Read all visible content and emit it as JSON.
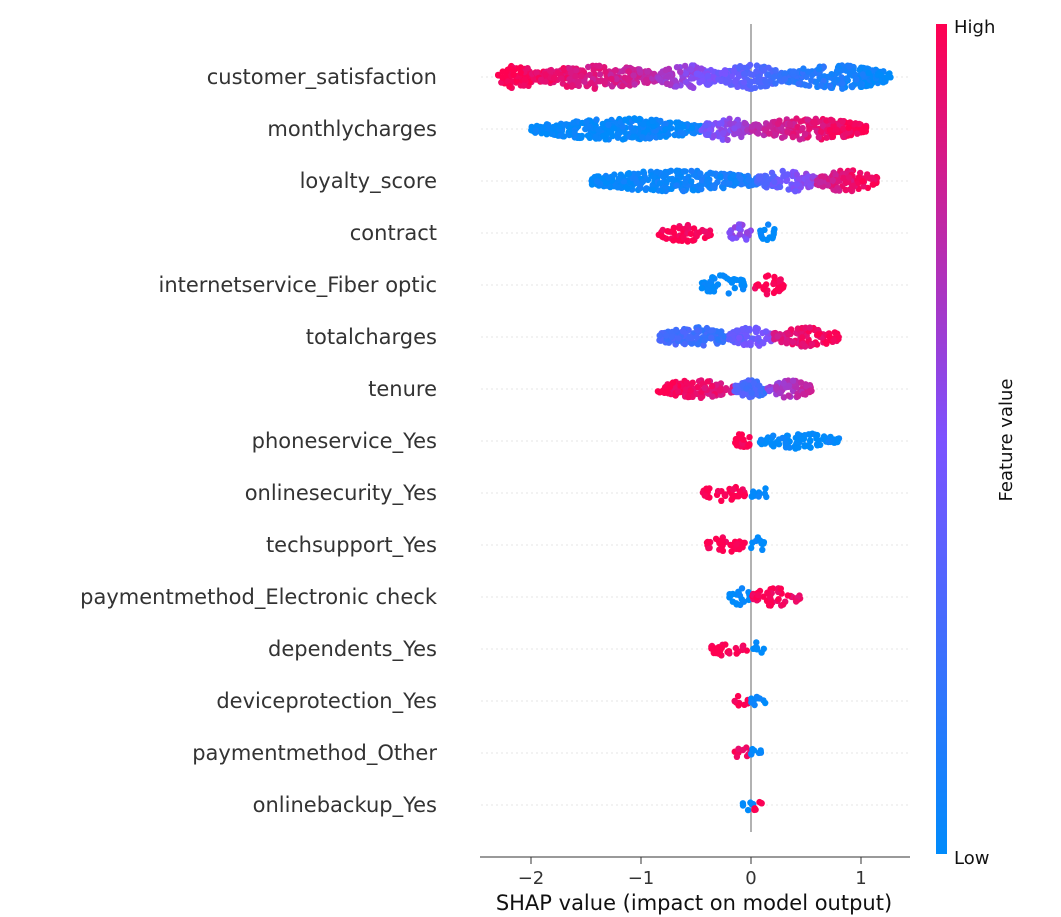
{
  "chart_data": {
    "type": "scatter",
    "subtype": "shap-beeswarm",
    "xlabel": "SHAP value (impact on model output)",
    "xlim": [
      -2.45,
      1.45
    ],
    "xticks": [
      {
        "value": -2,
        "label": "−2"
      },
      {
        "value": -1,
        "label": "−1"
      },
      {
        "value": 0,
        "label": "0"
      },
      {
        "value": 1,
        "label": "1"
      }
    ],
    "features": [
      {
        "name": "customer_satisfaction",
        "density": 1.0,
        "spread": 12,
        "segments": [
          {
            "from": -2.3,
            "to": -1.95,
            "cfrom": 1.0,
            "cto": 0.95
          },
          {
            "from": -1.95,
            "to": -0.85,
            "cfrom": 0.95,
            "cto": 0.75
          },
          {
            "from": -0.85,
            "to": -0.3,
            "cfrom": 0.7,
            "cto": 0.45
          },
          {
            "from": -0.3,
            "to": 0.3,
            "cfrom": 0.45,
            "cto": 0.25
          },
          {
            "from": 0.3,
            "to": 1.27,
            "cfrom": 0.2,
            "cto": 0.0
          }
        ]
      },
      {
        "name": "monthlycharges",
        "density": 0.9,
        "spread": 11,
        "segments": [
          {
            "from": -2.0,
            "to": -0.45,
            "cfrom": 0.0,
            "cto": 0.05
          },
          {
            "from": -0.45,
            "to": 0.0,
            "cfrom": 0.45,
            "cto": 0.65
          },
          {
            "from": 0.0,
            "to": 1.05,
            "cfrom": 0.75,
            "cto": 1.0
          }
        ]
      },
      {
        "name": "loyalty_score",
        "density": 0.9,
        "spread": 11,
        "segments": [
          {
            "from": -1.45,
            "to": 0.05,
            "cfrom": 0.0,
            "cto": 0.1
          },
          {
            "from": 0.05,
            "to": 0.6,
            "cfrom": 0.3,
            "cto": 0.6
          },
          {
            "from": 0.6,
            "to": 1.15,
            "cfrom": 0.8,
            "cto": 1.0
          }
        ]
      },
      {
        "name": "contract",
        "density": 0.45,
        "spread": 9,
        "segments": [
          {
            "from": -0.85,
            "to": -0.35,
            "cfrom": 1.0,
            "cto": 0.95
          },
          {
            "from": -0.2,
            "to": 0.0,
            "cfrom": 0.55,
            "cto": 0.55
          },
          {
            "from": 0.08,
            "to": 0.22,
            "cfrom": 0.0,
            "cto": 0.0
          }
        ]
      },
      {
        "name": "internetservice_Fiber optic",
        "density": 0.5,
        "spread": 10,
        "segments": [
          {
            "from": -0.45,
            "to": -0.05,
            "cfrom": 0.0,
            "cto": 0.0
          },
          {
            "from": 0.03,
            "to": 0.3,
            "cfrom": 1.0,
            "cto": 1.0
          }
        ]
      },
      {
        "name": "totalcharges",
        "density": 0.85,
        "spread": 10,
        "segments": [
          {
            "from": -0.85,
            "to": -0.2,
            "cfrom": 0.3,
            "cto": 0.2
          },
          {
            "from": -0.2,
            "to": 0.2,
            "cfrom": 0.4,
            "cto": 0.5
          },
          {
            "from": 0.2,
            "to": 0.8,
            "cfrom": 0.85,
            "cto": 1.0
          }
        ]
      },
      {
        "name": "tenure",
        "density": 0.8,
        "spread": 9,
        "segments": [
          {
            "from": -0.85,
            "to": -0.15,
            "cfrom": 1.0,
            "cto": 0.85
          },
          {
            "from": -0.15,
            "to": 0.15,
            "cfrom": 0.35,
            "cto": 0.2
          },
          {
            "from": 0.15,
            "to": 0.55,
            "cfrom": 0.6,
            "cto": 0.8
          }
        ]
      },
      {
        "name": "phoneservice_Yes",
        "density": 0.5,
        "spread": 8,
        "segments": [
          {
            "from": -0.15,
            "to": 0.0,
            "cfrom": 1.0,
            "cto": 1.0
          },
          {
            "from": 0.08,
            "to": 0.8,
            "cfrom": 0.0,
            "cto": 0.0
          }
        ]
      },
      {
        "name": "onlinesecurity_Yes",
        "density": 0.4,
        "spread": 8,
        "segments": [
          {
            "from": -0.45,
            "to": -0.05,
            "cfrom": 1.0,
            "cto": 1.0
          },
          {
            "from": 0.0,
            "to": 0.15,
            "cfrom": 0.0,
            "cto": 0.0
          }
        ]
      },
      {
        "name": "techsupport_Yes",
        "density": 0.4,
        "spread": 8,
        "segments": [
          {
            "from": -0.4,
            "to": -0.05,
            "cfrom": 1.0,
            "cto": 1.0
          },
          {
            "from": 0.0,
            "to": 0.12,
            "cfrom": 0.0,
            "cto": 0.0
          }
        ]
      },
      {
        "name": "paymentmethod_Electronic check",
        "density": 0.45,
        "spread": 9,
        "segments": [
          {
            "from": -0.2,
            "to": 0.0,
            "cfrom": 0.0,
            "cto": 0.0
          },
          {
            "from": 0.0,
            "to": 0.45,
            "cfrom": 1.0,
            "cto": 0.95
          }
        ]
      },
      {
        "name": "dependents_Yes",
        "density": 0.35,
        "spread": 7,
        "segments": [
          {
            "from": -0.4,
            "to": -0.03,
            "cfrom": 1.0,
            "cto": 1.0
          },
          {
            "from": 0.0,
            "to": 0.12,
            "cfrom": 0.0,
            "cto": 0.0
          }
        ]
      },
      {
        "name": "deviceprotection_Yes",
        "density": 0.3,
        "spread": 7,
        "segments": [
          {
            "from": -0.15,
            "to": 0.0,
            "cfrom": 1.0,
            "cto": 1.0
          },
          {
            "from": 0.0,
            "to": 0.13,
            "cfrom": 0.0,
            "cto": 0.0
          }
        ]
      },
      {
        "name": "paymentmethod_Other",
        "density": 0.3,
        "spread": 7,
        "segments": [
          {
            "from": -0.15,
            "to": 0.0,
            "cfrom": 1.0,
            "cto": 0.9
          },
          {
            "from": 0.0,
            "to": 0.1,
            "cfrom": 0.0,
            "cto": 0.0
          }
        ]
      },
      {
        "name": "onlinebackup_Yes",
        "density": 0.25,
        "spread": 6,
        "segments": [
          {
            "from": -0.08,
            "to": 0.02,
            "cfrom": 0.0,
            "cto": 0.0
          },
          {
            "from": 0.0,
            "to": 0.1,
            "cfrom": 1.0,
            "cto": 1.0
          }
        ]
      }
    ],
    "colorbar": {
      "high_label": "High",
      "low_label": "Low",
      "title": "Feature value",
      "low_color": "#008bfb",
      "high_color": "#ff0051",
      "mid_color": "#7c52ff"
    },
    "grid": false,
    "zero_line_color": "#999999"
  }
}
